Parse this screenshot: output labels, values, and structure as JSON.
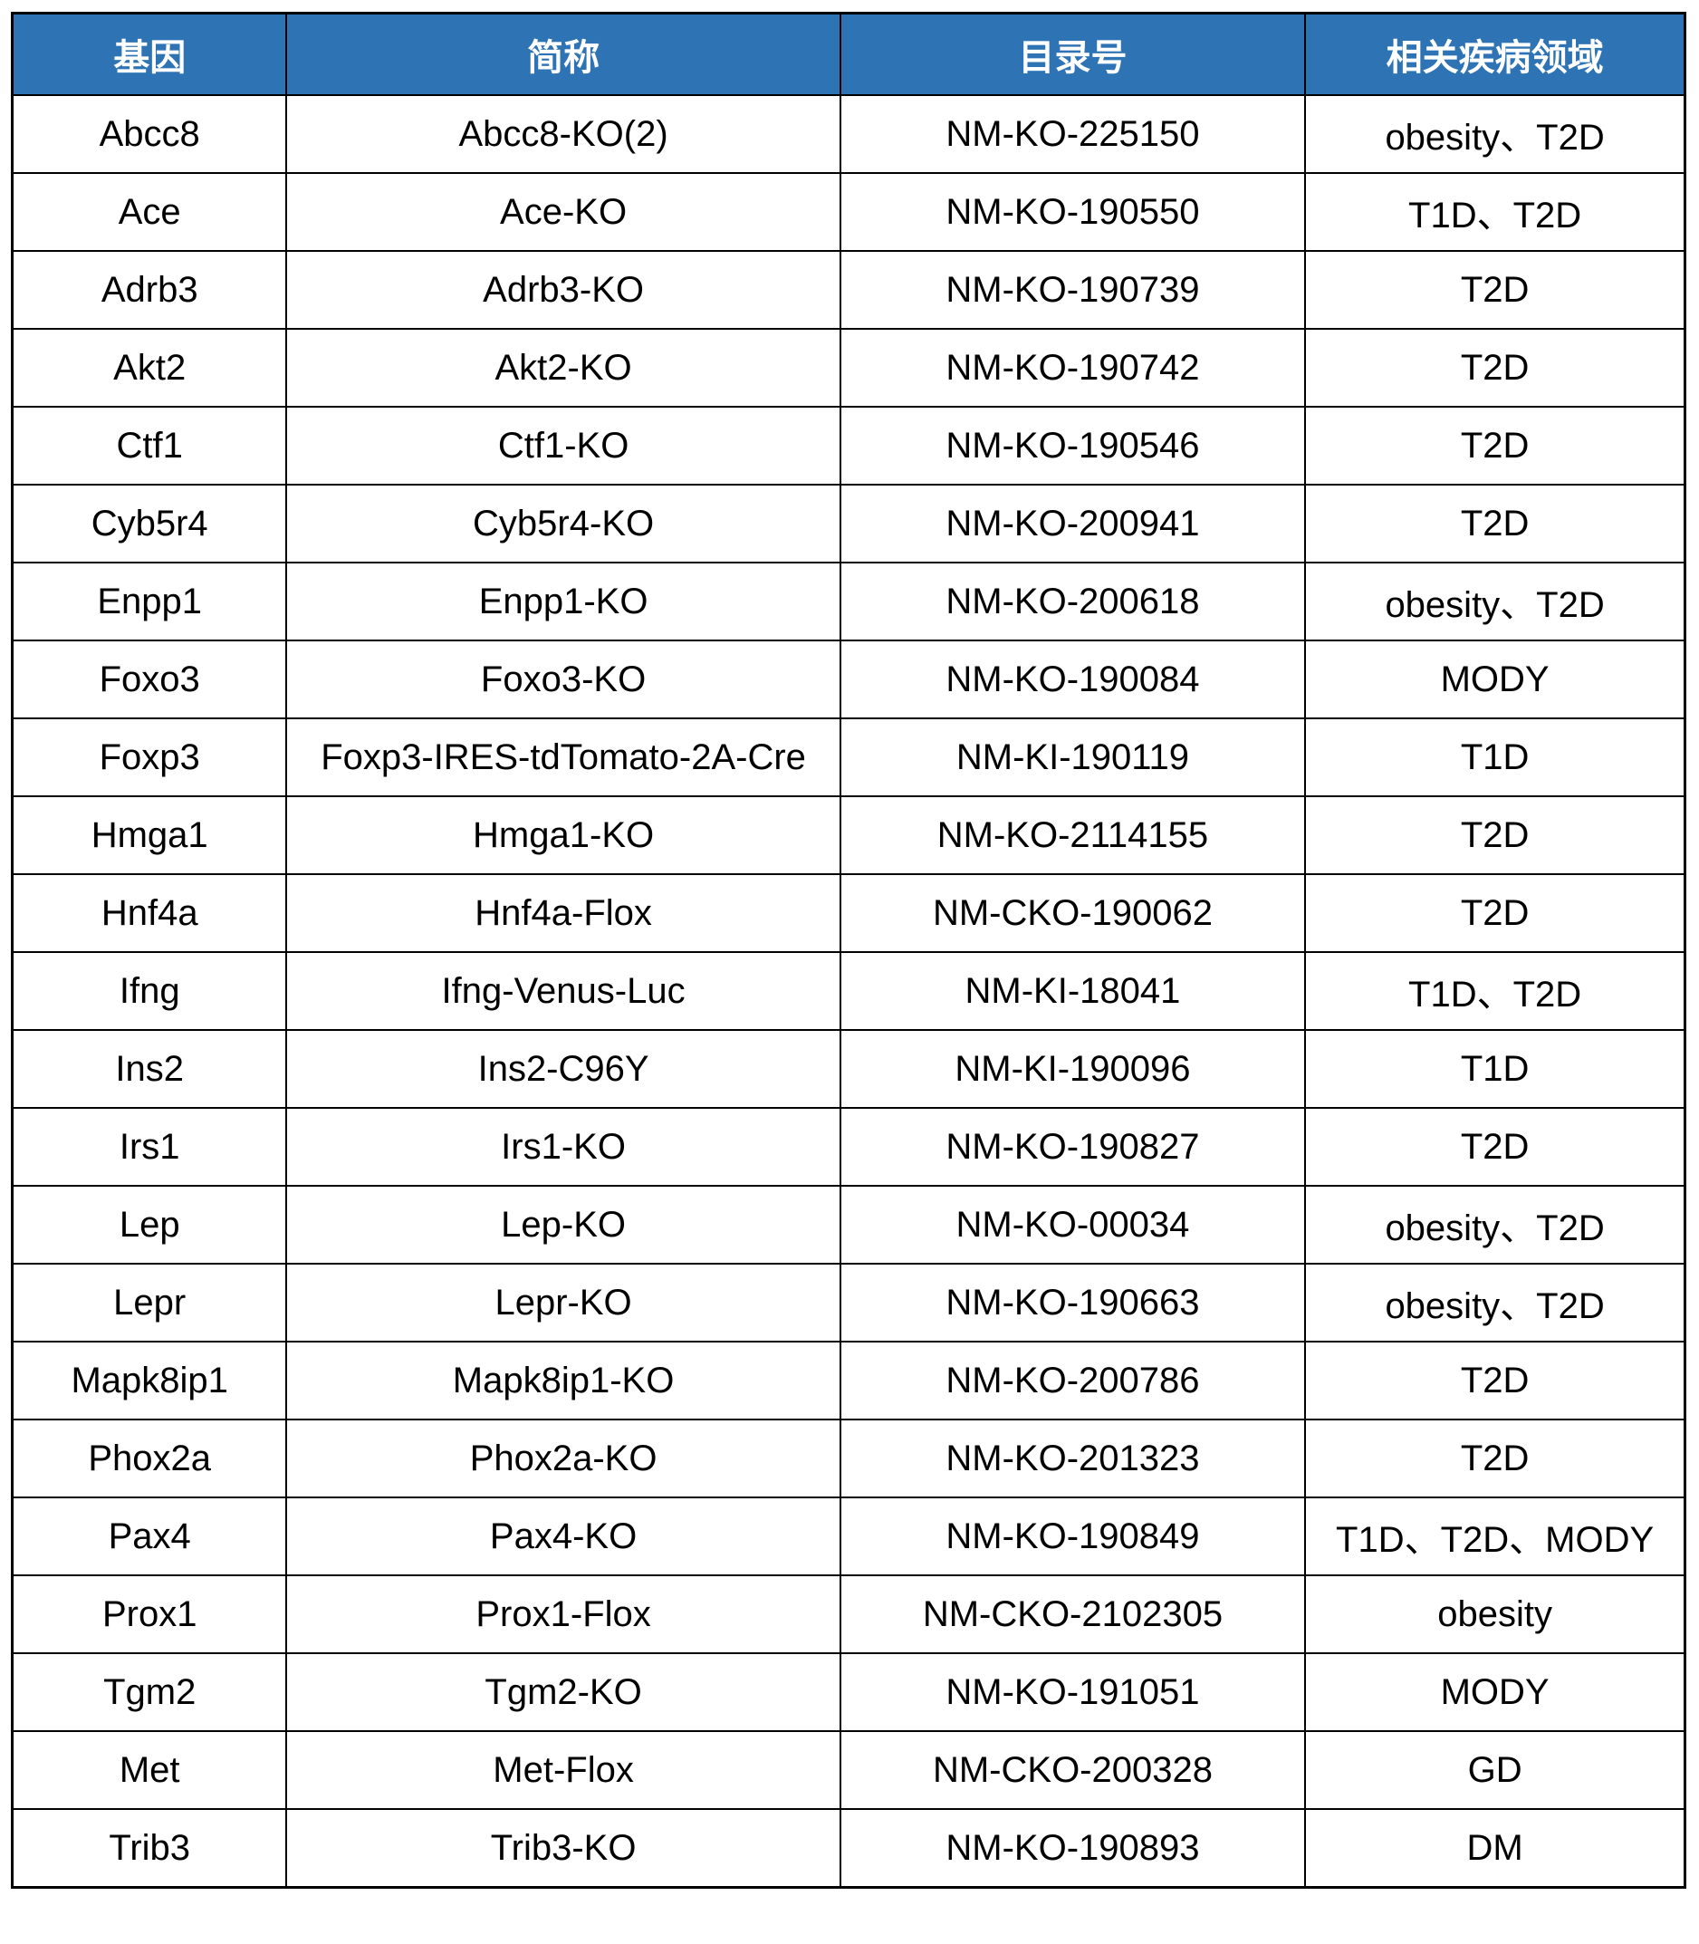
{
  "table": {
    "columns": [
      {
        "key": "gene",
        "label": "基因"
      },
      {
        "key": "short_name",
        "label": "简称"
      },
      {
        "key": "catalog",
        "label": "目录号"
      },
      {
        "key": "disease",
        "label": "相关疾病领域"
      }
    ],
    "rows": [
      [
        "Abcc8",
        "Abcc8-KO(2)",
        "NM-KO-225150",
        "obesity、T2D"
      ],
      [
        "Ace",
        "Ace-KO",
        "NM-KO-190550",
        "T1D、T2D"
      ],
      [
        "Adrb3",
        "Adrb3-KO",
        "NM-KO-190739",
        "T2D"
      ],
      [
        "Akt2",
        "Akt2-KO",
        "NM-KO-190742",
        "T2D"
      ],
      [
        "Ctf1",
        "Ctf1-KO",
        "NM-KO-190546",
        "T2D"
      ],
      [
        "Cyb5r4",
        "Cyb5r4-KO",
        "NM-KO-200941",
        "T2D"
      ],
      [
        "Enpp1",
        "Enpp1-KO",
        "NM-KO-200618",
        "obesity、T2D"
      ],
      [
        "Foxo3",
        "Foxo3-KO",
        "NM-KO-190084",
        "MODY"
      ],
      [
        "Foxp3",
        "Foxp3-IRES-tdTomato-2A-Cre",
        "NM-KI-190119",
        "T1D"
      ],
      [
        "Hmga1",
        "Hmga1-KO",
        "NM-KO-2114155",
        "T2D"
      ],
      [
        "Hnf4a",
        "Hnf4a-Flox",
        "NM-CKO-190062",
        "T2D"
      ],
      [
        "Ifng",
        "Ifng-Venus-Luc",
        "NM-KI-18041",
        "T1D、T2D"
      ],
      [
        "Ins2",
        "Ins2-C96Y",
        "NM-KI-190096",
        "T1D"
      ],
      [
        "Irs1",
        "Irs1-KO",
        "NM-KO-190827",
        "T2D"
      ],
      [
        "Lep",
        "Lep-KO",
        "NM-KO-00034",
        "obesity、T2D"
      ],
      [
        "Lepr",
        "Lepr-KO",
        "NM-KO-190663",
        "obesity、T2D"
      ],
      [
        "Mapk8ip1",
        "Mapk8ip1-KO",
        "NM-KO-200786",
        "T2D"
      ],
      [
        "Phox2a",
        "Phox2a-KO",
        "NM-KO-201323",
        "T2D"
      ],
      [
        "Pax4",
        "Pax4-KO",
        "NM-KO-190849",
        "T1D、T2D、MODY"
      ],
      [
        "Prox1",
        "Prox1-Flox",
        "NM-CKO-2102305",
        "obesity"
      ],
      [
        "Tgm2",
        "Tgm2-KO",
        "NM-KO-191051",
        "MODY"
      ],
      [
        "Met",
        "Met-Flox",
        "NM-CKO-200328",
        "GD"
      ],
      [
        "Trib3",
        "Trib3-KO",
        "NM-KO-190893",
        "DM"
      ]
    ],
    "colors": {
      "header_bg": "#2E74B5",
      "header_text": "#FFFFFF",
      "border": "#000000",
      "body_text": "#000000"
    },
    "column_widths_pct": [
      16.4,
      33.1,
      27.8,
      22.7
    ]
  }
}
